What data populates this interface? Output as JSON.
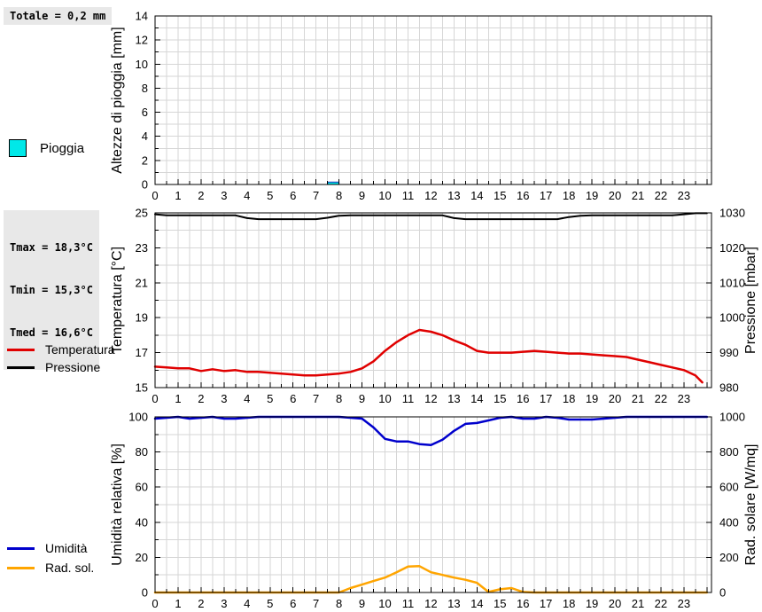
{
  "stats": {
    "rain_total": "Totale = 0,2 mm",
    "tmax": "Tmax = 18,3°C",
    "tmin": "Tmin = 15,3°C",
    "tmed": "Tmed = 16,6°C"
  },
  "colors": {
    "rain": "#00E8E8",
    "rain_edge": "#2233BB",
    "temperature": "#E00000",
    "pressure": "#000000",
    "humidity": "#0000CC",
    "solar": "#FFA500",
    "grid": "#D6D6D6",
    "axis": "#000000",
    "stats_bg": "#E8E8E8"
  },
  "chart_data": [
    {
      "name": "rain",
      "type": "bar",
      "ylabel_left": "Altezze di pioggia [mm]",
      "ylim_left": [
        0,
        14
      ],
      "yticks_left": [
        0,
        2,
        4,
        6,
        8,
        10,
        12,
        14
      ],
      "xlim": [
        0,
        24.2
      ],
      "xticks": [
        0,
        1,
        2,
        3,
        4,
        5,
        6,
        7,
        8,
        9,
        10,
        11,
        12,
        13,
        14,
        15,
        16,
        17,
        18,
        19,
        20,
        21,
        22,
        23
      ],
      "grid": true,
      "bars": [
        {
          "x_start": 7.5,
          "x_end": 8.0,
          "value": 0.2
        }
      ],
      "legend": [
        {
          "label": "Pioggia"
        }
      ]
    },
    {
      "name": "temperature-pressure",
      "type": "line",
      "ylabel_left": "Temperatura [°C]",
      "ylim_left": [
        15,
        25
      ],
      "yticks_left": [
        15,
        17,
        19,
        21,
        23,
        25
      ],
      "ylabel_right": "Pressione [mbar]",
      "ylim_right": [
        980,
        1030
      ],
      "yticks_right": [
        980,
        990,
        1000,
        1010,
        1020,
        1030
      ],
      "xlim": [
        0,
        24.2
      ],
      "xticks": [
        0,
        1,
        2,
        3,
        4,
        5,
        6,
        7,
        8,
        9,
        10,
        11,
        12,
        13,
        14,
        15,
        16,
        17,
        18,
        19,
        20,
        21,
        22,
        23
      ],
      "grid": true,
      "series": [
        {
          "name": "Temperatura",
          "axis": "left",
          "color": "#E00000",
          "x": [
            0,
            0.5,
            1,
            1.5,
            2,
            2.5,
            3,
            3.5,
            4,
            4.5,
            5,
            5.5,
            6,
            6.5,
            7,
            7.5,
            8,
            8.5,
            9,
            9.5,
            10,
            10.5,
            11,
            11.5,
            12,
            12.5,
            13,
            13.5,
            14,
            14.5,
            15,
            15.5,
            16,
            16.5,
            17,
            17.5,
            18,
            18.5,
            19,
            19.5,
            20,
            20.5,
            21,
            21.5,
            22,
            22.5,
            23,
            23.5,
            23.8
          ],
          "y": [
            16.2,
            16.15,
            16.1,
            16.1,
            15.95,
            16.05,
            15.95,
            16,
            15.9,
            15.9,
            15.85,
            15.8,
            15.75,
            15.7,
            15.7,
            15.75,
            15.8,
            15.9,
            16.1,
            16.5,
            17.1,
            17.6,
            18,
            18.3,
            18.2,
            18,
            17.7,
            17.45,
            17.1,
            17,
            17,
            17,
            17.05,
            17.1,
            17.05,
            17,
            16.95,
            16.95,
            16.9,
            16.85,
            16.8,
            16.75,
            16.6,
            16.45,
            16.3,
            16.15,
            16,
            15.7,
            15.3
          ]
        },
        {
          "name": "Pressione",
          "axis": "right",
          "color": "#000000",
          "x": [
            0,
            0.5,
            1,
            1.5,
            2,
            2.5,
            3,
            3.5,
            4,
            4.5,
            5,
            5.5,
            6,
            6.5,
            7,
            7.5,
            8,
            8.5,
            9,
            9.5,
            10,
            10.5,
            11,
            11.5,
            12,
            12.5,
            13,
            13.5,
            14,
            14.5,
            15,
            15.5,
            16,
            16.5,
            17,
            17.5,
            18,
            18.5,
            19,
            19.5,
            20,
            20.5,
            21,
            21.5,
            22,
            22.5,
            23,
            23.5,
            24
          ],
          "y": [
            1029.6,
            1029.3,
            1029.3,
            1029.3,
            1029.3,
            1029.3,
            1029.3,
            1029.3,
            1028.5,
            1028.2,
            1028.2,
            1028.2,
            1028.2,
            1028.2,
            1028.2,
            1028.6,
            1029.2,
            1029.3,
            1029.3,
            1029.3,
            1029.3,
            1029.3,
            1029.3,
            1029.3,
            1029.3,
            1029.3,
            1028.5,
            1028.2,
            1028.2,
            1028.2,
            1028.2,
            1028.2,
            1028.2,
            1028.2,
            1028.2,
            1028.2,
            1028.8,
            1029.2,
            1029.3,
            1029.3,
            1029.3,
            1029.3,
            1029.3,
            1029.3,
            1029.3,
            1029.3,
            1029.6,
            1029.9,
            1029.9
          ]
        }
      ]
    },
    {
      "name": "humidity-solar",
      "type": "line",
      "ylabel_left": "Umidità relativa [%]",
      "ylim_left": [
        0,
        100
      ],
      "yticks_left": [
        0,
        20,
        40,
        60,
        80,
        100
      ],
      "ylabel_right": "Rad. solare [W/mq]",
      "ylim_right": [
        0,
        1000
      ],
      "yticks_right": [
        0,
        200,
        400,
        600,
        800,
        1000
      ],
      "xlim": [
        0,
        24.2
      ],
      "xticks": [
        0,
        1,
        2,
        3,
        4,
        5,
        6,
        7,
        8,
        9,
        10,
        11,
        12,
        13,
        14,
        15,
        16,
        17,
        18,
        19,
        20,
        21,
        22,
        23
      ],
      "grid": true,
      "series": [
        {
          "name": "Umidità",
          "axis": "left",
          "color": "#0000CC",
          "x": [
            0,
            0.5,
            1,
            1.5,
            2,
            2.5,
            3,
            3.5,
            4,
            4.5,
            5,
            5.5,
            6,
            6.5,
            7,
            7.5,
            8,
            8.5,
            9,
            9.5,
            10,
            10.5,
            11,
            11.5,
            12,
            12.5,
            13,
            13.5,
            14,
            14.5,
            15,
            15.5,
            16,
            16.5,
            17,
            17.5,
            18,
            18.5,
            19,
            19.5,
            20,
            20.5,
            21,
            21.5,
            22,
            22.5,
            23,
            23.5,
            24
          ],
          "y": [
            99,
            99.5,
            100,
            99,
            99.5,
            100,
            99,
            99,
            99.5,
            100,
            100,
            100,
            100,
            100,
            100,
            100,
            100,
            99.5,
            99,
            94,
            87.5,
            86,
            86,
            84.5,
            84,
            87,
            92,
            96,
            96.5,
            98,
            99.5,
            100,
            99,
            99,
            100,
            99.5,
            98.5,
            98.5,
            98.5,
            99,
            99.5,
            100,
            100,
            100,
            100,
            100,
            100,
            100,
            100
          ]
        },
        {
          "name": "Rad. sol.",
          "axis": "right",
          "color": "#FFA500",
          "x": [
            0,
            0.5,
            1,
            1.5,
            2,
            2.5,
            3,
            3.5,
            4,
            4.5,
            5,
            5.5,
            6,
            6.5,
            7,
            7.5,
            8,
            8.5,
            9,
            9.5,
            10,
            10.5,
            11,
            11.5,
            12,
            12.5,
            13,
            13.5,
            14,
            14.5,
            15,
            15.5,
            16,
            16.5,
            17,
            17.5,
            18,
            18.5,
            19,
            19.5,
            20,
            20.5,
            21,
            21.5,
            22,
            22.5,
            23,
            23.5,
            24
          ],
          "y": [
            0,
            0,
            0,
            0,
            0,
            0,
            0,
            0,
            0,
            0,
            0,
            0,
            0,
            0,
            0,
            0,
            0,
            25,
            45,
            65,
            85,
            115,
            148,
            150,
            115,
            100,
            85,
            72,
            55,
            3,
            18,
            25,
            3,
            0,
            0,
            0,
            0,
            0,
            0,
            0,
            0,
            0,
            0,
            0,
            0,
            0,
            0,
            0,
            0
          ]
        }
      ]
    }
  ]
}
